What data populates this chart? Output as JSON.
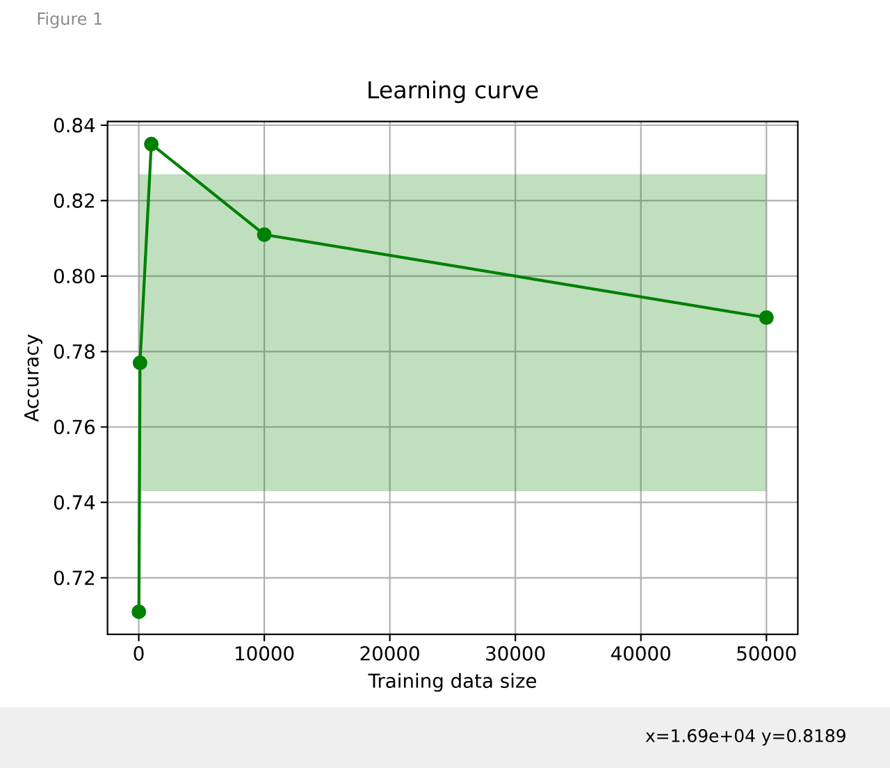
{
  "chart_data": {
    "type": "line",
    "title": "Learning curve",
    "xlabel": "Training data size",
    "ylabel": "Accuracy",
    "annotations": [
      "Figure 1",
      "x=1.69e+04 y=0.8189"
    ],
    "x": [
      10,
      100,
      1000,
      10000,
      50000
    ],
    "series": [
      {
        "color": "#008000",
        "values": [
          0.711,
          0.777,
          0.835,
          0.811,
          0.789
        ],
        "lower": [
          0.743,
          0.743,
          0.743,
          0.743,
          0.743
        ],
        "upper": [
          0.827,
          0.827,
          0.827,
          0.827,
          0.827
        ]
      }
    ],
    "xlim": [
      -2490,
      52500
    ],
    "ylim": [
      0.705,
      0.841
    ],
    "xticks": [
      0,
      10000,
      20000,
      30000,
      40000,
      50000
    ],
    "yticks": [
      0.72,
      0.74,
      0.76,
      0.78,
      {
        "value": 0.8,
        "label": "0.80"
      },
      0.82,
      0.84
    ],
    "grid": true,
    "marker": "circle",
    "line_style": "solid"
  }
}
